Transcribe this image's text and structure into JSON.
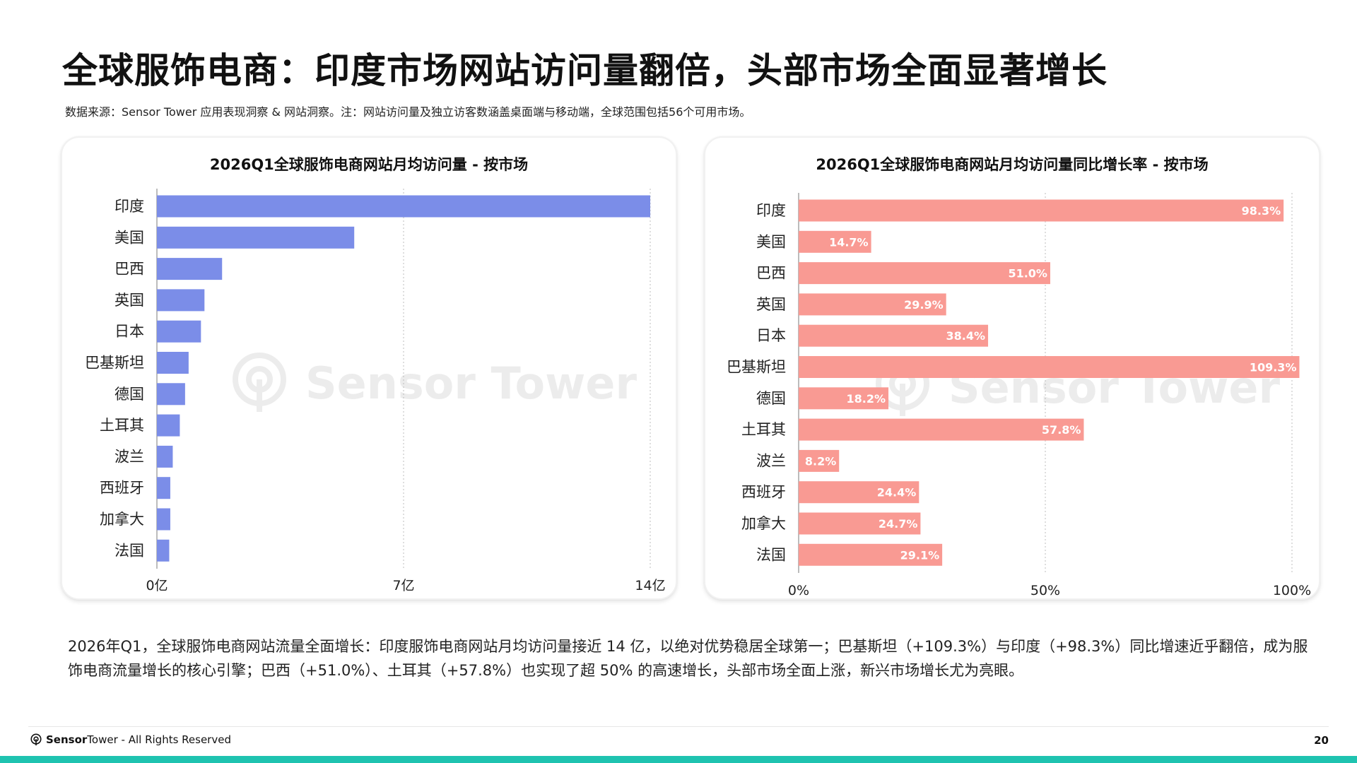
{
  "page": {
    "title": "全球服饰电商：印度市场网站访问量翻倍，头部市场全面显著增长",
    "source": "数据来源：Sensor Tower 应用表现洞察 & 网站洞察。注：网站访问量及独立访客数涵盖桌面端与移动端，全球范围包括56个可用市场。",
    "summary": "2026年Q1，全球服饰电商网站流量全面增长：印度服饰电商网站月均访问量接近 14 亿，以绝对优势稳居全球第一；巴基斯坦（+109.3%）与印度（+98.3%）同比增速近乎翻倍，成为服饰电商流量增长的核心引擎；巴西（+51.0%）、土耳其（+57.8%）也实现了超 50% 的高速增长，头部市场全面上涨，新兴市场增长尤为亮眼。",
    "watermark": "Sensor Tower",
    "footer": {
      "brand_bold": "Sensor",
      "brand_regular": "Tower",
      "rights": " - All Rights Reserved",
      "page_number": "20"
    },
    "colors": {
      "bar_left": "#7b8de8",
      "bar_right": "#f99a93",
      "accent_bar": "#1fc3b0"
    }
  },
  "chart_data": [
    {
      "type": "bar",
      "orientation": "horizontal",
      "title": "2026Q1全球服饰电商网站月均访问量 - 按市场",
      "categories": [
        "印度",
        "美国",
        "巴西",
        "英国",
        "日本",
        "巴基斯坦",
        "德国",
        "土耳其",
        "波兰",
        "西班牙",
        "加拿大",
        "法国"
      ],
      "values": [
        14.0,
        5.6,
        1.85,
        1.35,
        1.25,
        0.9,
        0.8,
        0.65,
        0.45,
        0.38,
        0.38,
        0.35
      ],
      "unit": "亿",
      "xlim": [
        0,
        14
      ],
      "xticks": [
        0,
        7,
        14
      ],
      "xtick_labels": [
        "0亿",
        "7亿",
        "14亿"
      ],
      "grid": true,
      "color": "#7b8de8"
    },
    {
      "type": "bar",
      "orientation": "horizontal",
      "title": "2026Q1全球服饰电商网站月均访问量同比增长率 - 按市场",
      "categories": [
        "印度",
        "美国",
        "巴西",
        "英国",
        "日本",
        "巴基斯坦",
        "德国",
        "土耳其",
        "波兰",
        "西班牙",
        "加拿大",
        "法国"
      ],
      "values": [
        98.3,
        14.7,
        51.0,
        29.9,
        38.4,
        109.3,
        18.2,
        57.8,
        8.2,
        24.4,
        24.7,
        29.1
      ],
      "value_labels": [
        "98.3%",
        "14.7%",
        "51.0%",
        "29.9%",
        "38.4%",
        "109.3%",
        "18.2%",
        "57.8%",
        "8.2%",
        "24.4%",
        "24.7%",
        "29.1%"
      ],
      "unit": "%",
      "xlim": [
        0,
        100
      ],
      "xticks": [
        0,
        50,
        100
      ],
      "xtick_labels": [
        "0%",
        "50%",
        "100%"
      ],
      "grid": true,
      "color": "#f99a93"
    }
  ]
}
